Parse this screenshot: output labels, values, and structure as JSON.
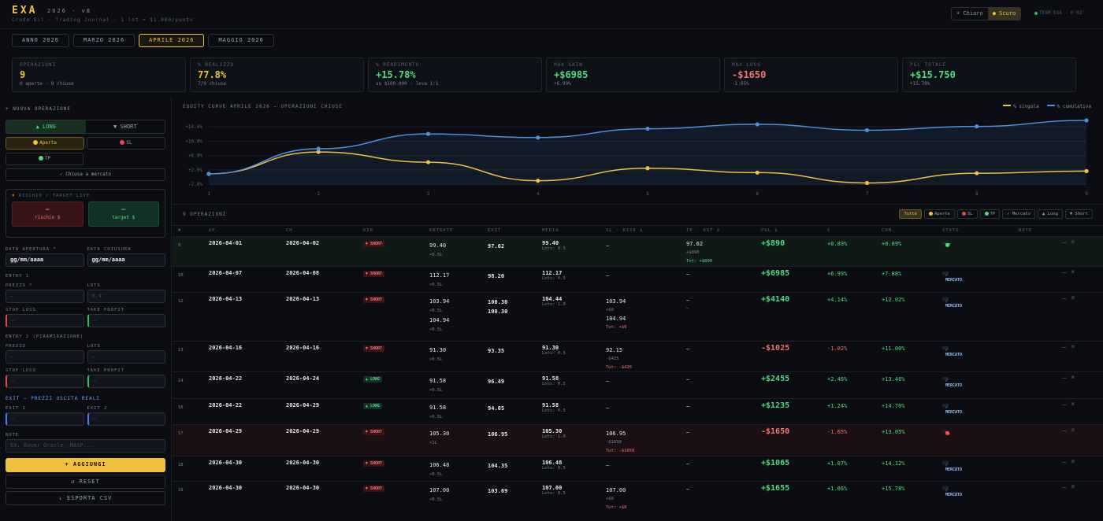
{
  "app": {
    "logo": "EXA",
    "version": "2026 · v8",
    "subtitle": "Crude Oil · Trading Journal · 1 lot = $1.000/punto",
    "theme_light": "Chiaro",
    "theme_dark": "Scuro",
    "team": "TEAM EXA · 0'02'"
  },
  "tabs": [
    "ANNO 2026",
    "MARZO 2026",
    "APRILE 2026",
    "MAGGIO 2026"
  ],
  "stats": [
    {
      "label": "OPERAZIONI",
      "value": "9",
      "sub": "0 aperte · 9 chiuse",
      "color": "#f0c040"
    },
    {
      "label": "% REALIZZO",
      "value": "77.8%",
      "sub": "7/9 chiuse",
      "color": "#f0c040"
    },
    {
      "label": "% RENDIMENTO",
      "value": "+15.78%",
      "sub": "su $100.000 · leva 1:1",
      "color": "#4ade80"
    },
    {
      "label": "MAX GAIN",
      "value": "+$6985",
      "sub": "+6.99%",
      "color": "#4ade80"
    },
    {
      "label": "MAX LOSS",
      "value": "-$1650",
      "sub": "-1.65%",
      "color": "#f87171"
    },
    {
      "label": "P&L TOTALE",
      "value": "+$15.750",
      "sub": "+15.78%",
      "color": "#4ade80"
    }
  ],
  "form": {
    "title": "+ NUOVA OPERAZIONE",
    "long": "▲ LONG",
    "short": "▼ SHORT",
    "aperta": "Aperta",
    "sl": "SL",
    "tp": "TP",
    "mercato": "✓ Chiusa a mercato",
    "risk_title": "RISCHIO / TARGET LIVE",
    "risk_val": "—",
    "risk_lab": "rischio $",
    "target_val": "—",
    "target_lab": "target $",
    "data_apertura": "DATA APERTURA *",
    "data_chiusura": "DATA CHIUSURA",
    "date_ph": "gg/mm/aaaa",
    "entry1": "ENTRY 1",
    "prezzo": "PREZZO *",
    "lots": "LOTS",
    "lots_ph": "0.4",
    "dash": "—",
    "stop_loss": "STOP LOSS",
    "take_profit": "TAKE PROFIT",
    "entry2": "ENTRY 2 (PIRAMIDAZIONE)",
    "prezzo2": "PREZZO",
    "exit_title": "EXIT — PREZZI USCITA REALI",
    "exit1": "EXIT 1",
    "exit2": "EXIT 2",
    "note": "NOTE",
    "note_ph": "EX. Bayer Oracle, MASP...",
    "add": "+ AGGIUNGI",
    "reset": "↺ RESET",
    "csv": "↓ ESPORTA CSV"
  },
  "chart_data": {
    "type": "line",
    "title": "EQUITY CURVE APRILE 2026 — OPERAZIONI CHIUSE",
    "x": [
      1,
      2,
      3,
      4,
      5,
      6,
      7,
      8,
      9
    ],
    "series": [
      {
        "name": "% singola",
        "color": "#f0c040",
        "values": [
          0.89,
          6.99,
          4.14,
          -1.02,
          2.46,
          1.24,
          -1.65,
          1.07,
          1.66
        ]
      },
      {
        "name": "% cumulativa",
        "color": "#4a8fe0",
        "values": [
          0.89,
          7.88,
          12.02,
          11.0,
          13.46,
          14.7,
          13.05,
          14.12,
          15.78
        ]
      }
    ],
    "yticks": [
      "+14.0%",
      "+10.0%",
      "+6.0%",
      "+2.0%",
      "-2.0%"
    ],
    "ytick_values": [
      14,
      10,
      6,
      2,
      -2
    ],
    "ylim": [
      -2.2,
      16
    ]
  },
  "table": {
    "count": "9 OPERAZIONI",
    "filters": [
      "Tutte",
      "Aperte",
      "SL",
      "TP",
      "✓ Mercato",
      "▲ Long",
      "▼ Short"
    ],
    "headers": [
      "#",
      "AP.",
      "CH.",
      "DIR",
      "ENTRATE",
      "EXIT",
      "MEDIA",
      "SL · RISK $",
      "TP · DST $",
      "P&L $",
      "%",
      "CUM.",
      "STATO",
      "NOTE"
    ],
    "rows": [
      {
        "n": "9",
        "ap": "2026-04-01",
        "ch": "2026-04-02",
        "dir": "▼ SHORT",
        "dirt": "s",
        "en": [
          "99.40",
          "×0.5L"
        ],
        "ex": [
          "97.62"
        ],
        "me": "99.40",
        "lot": "Lots: 0.5",
        "sl": [
          "—"
        ],
        "tp": [
          "97.62",
          "+$890",
          "Tot: +$890"
        ],
        "pnl": "+$890",
        "pct": "+0.89%",
        "cum": "+0.89%",
        "st": "TP",
        "stt": "tp",
        "h": 38,
        "bg": "#0f1a16"
      },
      {
        "n": "10",
        "ap": "2026-04-07",
        "ch": "2026-04-08",
        "dir": "▼ SHORT",
        "dirt": "s",
        "en": [
          "112.17",
          "×0.5L"
        ],
        "ex": [
          "98.20"
        ],
        "me": "112.17",
        "lot": "Lots: 0.5",
        "sl": [
          "—"
        ],
        "tp": [
          "—"
        ],
        "pnl": "+$6985",
        "pct": "+6.99%",
        "cum": "+7.88%",
        "st": "✓ MERCATO",
        "stt": "m",
        "h": 33,
        "bg": ""
      },
      {
        "n": "12",
        "ap": "2026-04-13",
        "ch": "2026-04-13",
        "dir": "▼ SHORT",
        "dirt": "s",
        "en": [
          "103.94",
          "×0.5L",
          "104.94",
          "×0.5L"
        ],
        "ex": [
          "100.30",
          "100.30"
        ],
        "me": "104.44",
        "lot": "Lots: 1.0",
        "sl": [
          "103.94",
          "+$0",
          "104.94",
          "Tot: +$0"
        ],
        "tp": [
          "—",
          "—"
        ],
        "pnl": "+$4140",
        "pct": "+4.14%",
        "cum": "+12.02%",
        "st": "✓ MERCATO",
        "stt": "m",
        "h": 62,
        "bg": ""
      },
      {
        "n": "13",
        "ap": "2026-04-16",
        "ch": "2026-04-16",
        "dir": "▼ SHORT",
        "dirt": "s",
        "en": [
          "91.30",
          "×0.5L"
        ],
        "ex": [
          "93.35"
        ],
        "me": "91.30",
        "lot": "Lots: 0.5",
        "sl": [
          "92.15",
          "-$425",
          "Tot: -$425"
        ],
        "tp": [
          "—"
        ],
        "pnl": "-$1025",
        "pct": "-1.02%",
        "cum": "+11.00%",
        "st": "✓ MERCATO",
        "stt": "m",
        "h": 39,
        "bg": ""
      },
      {
        "n": "14",
        "ap": "2026-04-22",
        "ch": "2026-04-24",
        "dir": "▲ LONG",
        "dirt": "l",
        "en": [
          "91.58",
          "×0.5L"
        ],
        "ex": [
          "96.49"
        ],
        "me": "91.58",
        "lot": "Lots: 0.5",
        "sl": [
          "—"
        ],
        "tp": [
          "—"
        ],
        "pnl": "+$2455",
        "pct": "+2.46%",
        "cum": "+13.46%",
        "st": "✓ MERCATO",
        "stt": "m",
        "h": 34,
        "bg": ""
      },
      {
        "n": "16",
        "ap": "2026-04-22",
        "ch": "2026-04-29",
        "dir": "▲ LONG",
        "dirt": "l",
        "en": [
          "91.58",
          "×0.5L"
        ],
        "ex": [
          "94.05"
        ],
        "me": "91.58",
        "lot": "Lots: 0.5",
        "sl": [
          "—"
        ],
        "tp": [
          "—"
        ],
        "pnl": "+$1235",
        "pct": "+1.24%",
        "cum": "+14.70%",
        "st": "✓ MERCATO",
        "stt": "m",
        "h": 33,
        "bg": ""
      },
      {
        "n": "17",
        "ap": "2026-04-29",
        "ch": "2026-04-29",
        "dir": "▼ SHORT",
        "dirt": "s",
        "en": [
          "105.30",
          "×1L"
        ],
        "ex": [
          "106.95"
        ],
        "me": "105.30",
        "lot": "Lots: 1.0",
        "sl": [
          "106.95",
          "-$1650",
          "Tot: -$1650"
        ],
        "tp": [
          "—"
        ],
        "pnl": "-$1650",
        "pct": "-1.65%",
        "cum": "+13.05%",
        "st": "SL",
        "stt": "sl",
        "h": 40,
        "bg": "#1a1014"
      },
      {
        "n": "18",
        "ap": "2026-04-30",
        "ch": "2026-04-30",
        "dir": "▼ SHORT",
        "dirt": "s",
        "en": [
          "106.48",
          "×0.5L"
        ],
        "ex": [
          "104.35"
        ],
        "me": "106.48",
        "lot": "Lots: 0.5",
        "sl": [
          "—"
        ],
        "tp": [
          "—"
        ],
        "pnl": "+$1065",
        "pct": "+1.07%",
        "cum": "+14.12%",
        "st": "✓ MERCATO",
        "stt": "m",
        "h": 32,
        "bg": ""
      },
      {
        "n": "19",
        "ap": "2026-04-30",
        "ch": "2026-04-30",
        "dir": "▼ SHORT",
        "dirt": "s",
        "en": [
          "107.00",
          "×0.5L"
        ],
        "ex": [
          "103.69"
        ],
        "me": "107.00",
        "lot": "Lots: 0.5",
        "sl": [
          "107.00",
          "+$0",
          "Tot: +$0"
        ],
        "tp": [
          "—"
        ],
        "pnl": "+$1655",
        "pct": "+1.66%",
        "cum": "+15.78%",
        "st": "✓ MERCATO",
        "stt": "m",
        "h": 40,
        "bg": ""
      }
    ]
  },
  "icons": {
    "minus": "—",
    "close": "×"
  }
}
